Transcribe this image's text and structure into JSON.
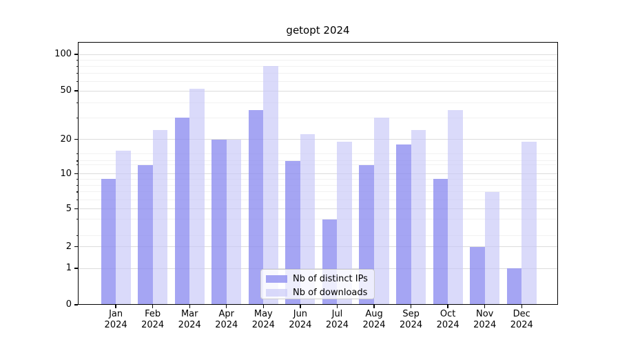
{
  "chart_data": {
    "type": "bar",
    "title": "getopt 2024",
    "categories": [
      "Jan 2024",
      "Feb 2024",
      "Mar 2024",
      "Apr 2024",
      "May 2024",
      "Jun 2024",
      "Jul 2024",
      "Aug 2024",
      "Sep 2024",
      "Oct 2024",
      "Nov 2024",
      "Dec 2024"
    ],
    "series": [
      {
        "name": "Nb of distinct IPs",
        "color": "rgba(140,140,240,0.78)",
        "values": [
          9,
          12,
          30,
          20,
          35,
          13,
          4,
          12,
          18,
          9,
          2,
          1
        ]
      },
      {
        "name": "Nb of downloads",
        "color": "rgba(198,198,248,0.65)",
        "values": [
          16,
          24,
          52,
          20,
          80,
          22,
          19,
          30,
          24,
          35,
          7,
          19
        ]
      }
    ],
    "xlabel": "",
    "ylabel": "",
    "y_axis": {
      "scale": "symlog",
      "ticks": [
        0,
        1,
        2,
        5,
        10,
        20,
        50,
        100
      ],
      "minor_gridlines": [
        3,
        4,
        6,
        7,
        8,
        9,
        12,
        13,
        15,
        30,
        40,
        60,
        70,
        80,
        90
      ],
      "ylim": [
        0,
        127
      ]
    },
    "grid": {
      "major_color": "#dcdcdc",
      "minor_color": "#f1f1f1"
    },
    "legend": {
      "position": "lower center"
    },
    "background_color": "#ffffff",
    "spine_color": "#000000"
  }
}
